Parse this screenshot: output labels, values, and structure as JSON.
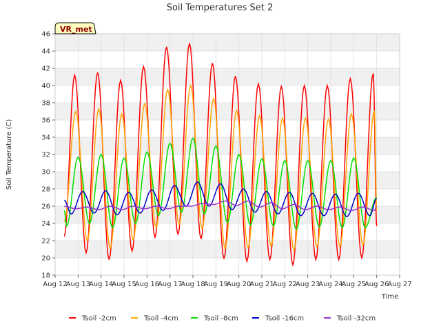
{
  "chart_data": {
    "type": "line",
    "title": "Soil Temperatures Set 2",
    "xlabel": "Time",
    "ylabel": "Soil Temperature (C)",
    "badge": "VR_met",
    "ylim": [
      18,
      46
    ],
    "xlim": [
      12,
      27
    ],
    "yticks": [
      18,
      20,
      22,
      24,
      26,
      28,
      30,
      32,
      34,
      36,
      38,
      40,
      42,
      44,
      46
    ],
    "xticks": [
      {
        "v": 12,
        "label": "Aug 12"
      },
      {
        "v": 13,
        "label": "Aug 13"
      },
      {
        "v": 14,
        "label": "Aug 14"
      },
      {
        "v": 15,
        "label": "Aug 15"
      },
      {
        "v": 16,
        "label": "Aug 16"
      },
      {
        "v": 17,
        "label": "Aug 17"
      },
      {
        "v": 18,
        "label": "Aug 18"
      },
      {
        "v": 19,
        "label": "Aug 19"
      },
      {
        "v": 20,
        "label": "Aug 20"
      },
      {
        "v": 21,
        "label": "Aug 21"
      },
      {
        "v": 22,
        "label": "Aug 22"
      },
      {
        "v": 23,
        "label": "Aug 23"
      },
      {
        "v": 24,
        "label": "Aug 24"
      },
      {
        "v": 25,
        "label": "Aug 25"
      },
      {
        "v": 26,
        "label": "Aug 26"
      },
      {
        "v": 27,
        "label": "Aug 27"
      }
    ],
    "grid": true,
    "legend_position": "bottom",
    "daily_x": [
      12.3,
      13.3,
      14.3,
      15.3,
      16.3,
      17.3,
      18.3,
      19.3,
      20.3,
      21.3,
      22.3,
      23.3,
      24.3,
      25.3,
      26.3
    ],
    "series": [
      {
        "name": "Tsoil -2cm",
        "color": "#ff0000",
        "start": 22.5,
        "end": 23.7,
        "peak_offset": 0.55,
        "trough_offset": 0.05,
        "mins": [
          20.2,
          20.6,
          19.8,
          20.8,
          22.4,
          22.7,
          22.2,
          19.9,
          19.6,
          19.8,
          19.2,
          19.8,
          19.8,
          20.0,
          20.0
        ],
        "maxs": [
          41.2,
          41.5,
          40.6,
          42.2,
          44.5,
          44.9,
          42.6,
          41.1,
          40.2,
          39.9,
          40.0,
          40.0,
          40.8,
          41.4,
          41.4
        ]
      },
      {
        "name": "Tsoil -4cm",
        "color": "#ffa500",
        "start": 24.2,
        "end": 25.5,
        "peak_offset": 0.6,
        "trough_offset": 0.1,
        "mins": [
          21.5,
          22.0,
          21.1,
          22.1,
          23.5,
          23.9,
          23.4,
          21.1,
          21.2,
          21.4,
          20.9,
          21.3,
          21.3,
          21.5,
          21.5
        ],
        "maxs": [
          37.0,
          37.3,
          36.7,
          37.9,
          39.5,
          40.0,
          38.5,
          37.1,
          36.5,
          36.2,
          36.2,
          36.1,
          36.7,
          37.1,
          37.1
        ]
      },
      {
        "name": "Tsoil -8cm",
        "color": "#00e000",
        "start": 25.5,
        "end": 27.0,
        "peak_offset": 0.7,
        "trough_offset": 0.2,
        "mins": [
          23.7,
          24.0,
          23.5,
          24.0,
          24.9,
          25.3,
          25.1,
          24.1,
          23.8,
          23.7,
          23.3,
          23.6,
          23.5,
          23.5,
          23.5
        ],
        "maxs": [
          31.7,
          32.0,
          31.6,
          32.3,
          33.3,
          33.9,
          33.0,
          32.0,
          31.5,
          31.3,
          31.3,
          31.3,
          31.6,
          31.9,
          31.9
        ]
      },
      {
        "name": "Tsoil -16cm",
        "color": "#0000cc",
        "start": 26.7,
        "end": 26.9,
        "peak_offset": 0.9,
        "trough_offset": 0.4,
        "mins": [
          25.1,
          25.2,
          25.0,
          25.2,
          25.5,
          26.0,
          26.0,
          25.6,
          25.3,
          25.1,
          24.9,
          24.9,
          24.8,
          24.9,
          24.9
        ],
        "maxs": [
          27.7,
          27.8,
          27.6,
          27.9,
          28.4,
          28.8,
          28.6,
          28.0,
          27.7,
          27.6,
          27.5,
          27.4,
          27.5,
          27.6,
          27.6
        ]
      },
      {
        "name": "Tsoil -32cm",
        "color": "#9a32cd",
        "start": 26.0,
        "end": 25.9,
        "peak_offset": 1.1,
        "trough_offset": 0.6,
        "mins": [
          25.7,
          25.6,
          25.6,
          25.7,
          25.7,
          26.0,
          26.2,
          26.1,
          25.9,
          25.7,
          25.6,
          25.6,
          25.5,
          25.5,
          25.5
        ],
        "maxs": [
          25.9,
          26.0,
          26.0,
          26.0,
          26.0,
          26.3,
          26.6,
          26.6,
          26.4,
          26.2,
          26.0,
          25.9,
          25.9,
          25.9,
          25.9
        ]
      }
    ]
  }
}
